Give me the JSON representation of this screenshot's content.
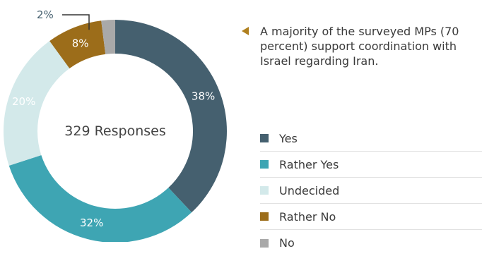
{
  "chart_data": {
    "type": "pie",
    "donut": true,
    "title": "",
    "center_label": "329 Responses",
    "categories": [
      "Yes",
      "Rather Yes",
      "Undecided",
      "Rather No",
      "No"
    ],
    "values": [
      38,
      32,
      20,
      8,
      2
    ],
    "value_labels": [
      "38%",
      "32%",
      "20%",
      "8%",
      "2%"
    ],
    "colors": [
      "#45606f",
      "#3ea5b3",
      "#d3e9ea",
      "#9c6d1a",
      "#a9a9a9"
    ],
    "legend_position": "right",
    "annotation": "A majority of the surveyed MPs (70 percent) support coordination with Israel regarding Iran."
  }
}
